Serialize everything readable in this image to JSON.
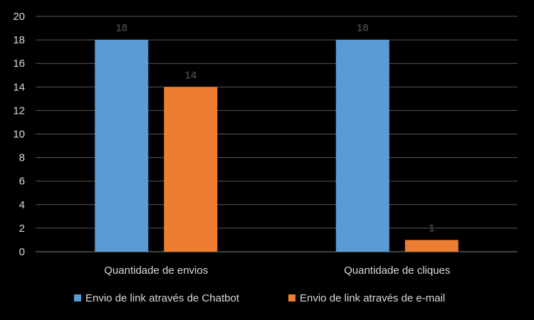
{
  "chart_data": {
    "type": "bar",
    "categories": [
      "Quantidade de envios",
      "Quantidade de cliques"
    ],
    "series": [
      {
        "name": "Envio de link através de Chatbot",
        "values": [
          18,
          18
        ],
        "color": "#5b9bd5"
      },
      {
        "name": "Envio de link através de e-mail",
        "values": [
          14,
          1
        ],
        "color": "#ed7d31"
      }
    ],
    "ylim": [
      0,
      20
    ],
    "yticks": [
      0,
      2,
      4,
      6,
      8,
      10,
      12,
      14,
      16,
      18,
      20
    ],
    "grid": true,
    "legend": "bottom",
    "title": "",
    "xlabel": "",
    "ylabel": ""
  }
}
